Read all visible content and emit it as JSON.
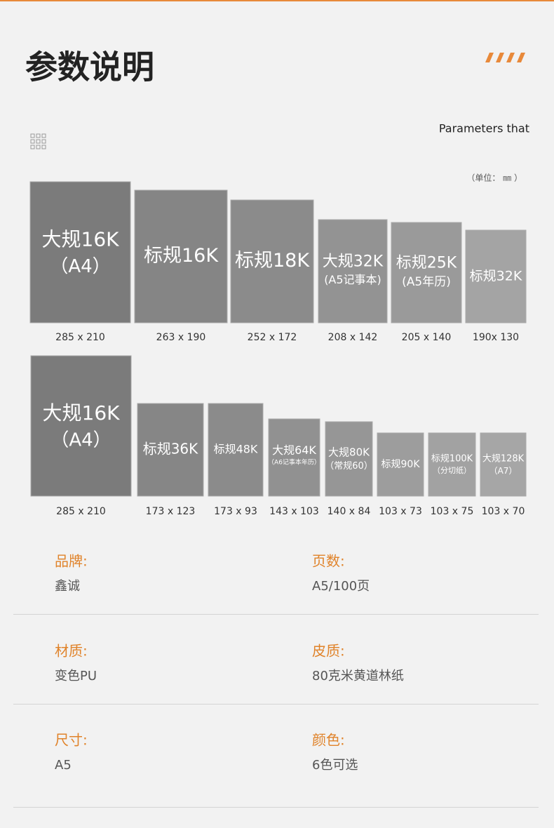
{
  "header": {
    "title": "参数说明",
    "subtitle": "Parameters that",
    "unit": "（单位： ㎜ ）"
  },
  "sizes": [
    {
      "items": [
        {
          "lines": [
            "大规16K",
            "（A4）"
          ],
          "dims": "285 x 210"
        },
        {
          "lines": [
            "标规16K"
          ],
          "dims": "263 x 190"
        },
        {
          "lines": [
            "标规18K"
          ],
          "dims": "252 x 172"
        },
        {
          "lines": [
            "大规32K",
            "(A5记事本)"
          ],
          "dims": "208 x 142"
        },
        {
          "lines": [
            "标规25K",
            "(A5年历)"
          ],
          "dims": "205 x 140"
        },
        {
          "lines": [
            "标规32K"
          ],
          "dims": "190x 130"
        }
      ]
    },
    {
      "items": [
        {
          "lines": [
            "大规16K",
            "（A4）"
          ],
          "dims": "285 x 210"
        },
        {
          "lines": [
            "标规36K"
          ],
          "dims": "173 x 123"
        },
        {
          "lines": [
            "标规48K"
          ],
          "dims": "173 x 93"
        },
        {
          "lines": [
            "大规64K",
            "（A6记事本年历）"
          ],
          "dims": "143 x 103"
        },
        {
          "lines": [
            "大规80K",
            "（常规60）"
          ],
          "dims": "140 x 84"
        },
        {
          "lines": [
            "标规90K"
          ],
          "dims": "103 x 73"
        },
        {
          "lines": [
            "标规100K",
            "（分切纸）"
          ],
          "dims": "103 x 75"
        },
        {
          "lines": [
            "大规128K",
            "（A7）"
          ],
          "dims": "103 x 70"
        }
      ]
    }
  ],
  "specs": [
    [
      {
        "label": "品牌:",
        "value": "鑫诚"
      },
      {
        "label": "页数:",
        "value": "A5/100页"
      }
    ],
    [
      {
        "label": "材质:",
        "value": "变色PU"
      },
      {
        "label": "皮质:",
        "value": "80克米黄道林纸"
      }
    ],
    [
      {
        "label": "尺寸:",
        "value": "A5"
      },
      {
        "label": "颜色:",
        "value": "6色可选"
      }
    ]
  ]
}
